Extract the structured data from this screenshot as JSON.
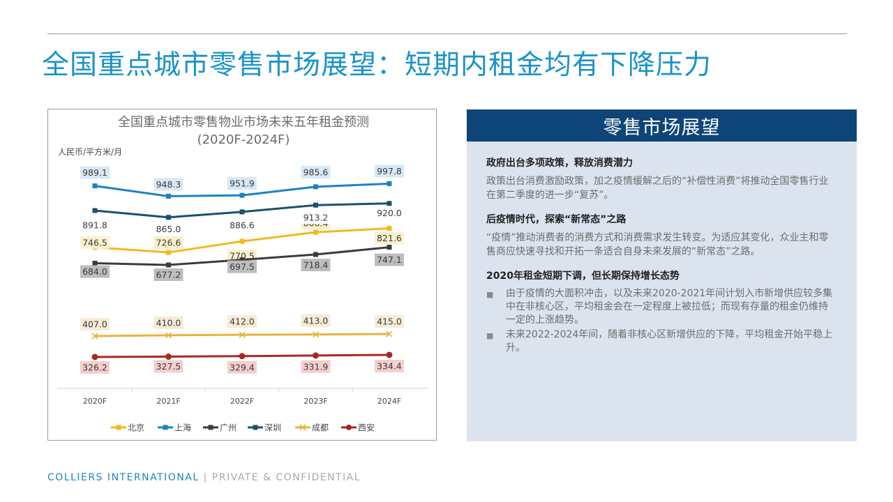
{
  "page": {
    "title": "全国重点城市零售市场展望：短期内租金均有下降压力"
  },
  "chart_data": {
    "type": "line",
    "title": "全国重点城市零售物业市场未来五年租金预测",
    "subtitle": "(2020F-2024F)",
    "ylabel": "人民币/平方米/月",
    "categories": [
      "2020F",
      "2021F",
      "2022F",
      "2023F",
      "2024F"
    ],
    "legend_position": "bottom",
    "grid": false,
    "series": [
      {
        "name": "北京",
        "values": [
          746.5,
          726.6,
          770.5,
          806.4,
          821.6
        ],
        "labels": [
          "746.5",
          "726.6",
          "770.5",
          "806.4",
          "821.6"
        ],
        "color": "#f3b81d",
        "marker": "square"
      },
      {
        "name": "上海",
        "values": [
          989.1,
          948.3,
          951.9,
          985.6,
          997.8
        ],
        "labels": [
          "989.1",
          "948.3",
          "951.9",
          "985.6",
          "997.8"
        ],
        "color": "#1c82bf",
        "marker": "square"
      },
      {
        "name": "广州",
        "values": [
          684.0,
          677.2,
          697.5,
          718.4,
          747.1
        ],
        "labels": [
          "684.0",
          "677.2",
          "697.5",
          "718.4",
          "747.1"
        ],
        "color": "#3b3b3b",
        "marker": "square"
      },
      {
        "name": "深圳",
        "values": [
          891.8,
          865.0,
          886.6,
          913.2,
          920.0
        ],
        "labels": [
          "891.8",
          "865.0",
          "886.6",
          "913.2",
          "920.0"
        ],
        "color": "#17526f",
        "marker": "square"
      },
      {
        "name": "成都",
        "values": [
          407.0,
          410.0,
          412.0,
          413.0,
          415.0
        ],
        "labels": [
          "407.0",
          "410.0",
          "412.0",
          "413.0",
          "415.0"
        ],
        "color": "#e8b23e",
        "marker": "x"
      },
      {
        "name": "西安",
        "values": [
          326.2,
          327.5,
          329.4,
          331.9,
          334.4
        ],
        "labels": [
          "326.2",
          "327.5",
          "329.4",
          "331.9",
          "334.4"
        ],
        "color": "#a52a22",
        "marker": "circle"
      }
    ]
  },
  "panel": {
    "title": "零售市场展望",
    "sections": [
      {
        "heading": "政府出台多项政策，释放消费潜力",
        "text": "政策出台消费激励政策，加之疫情缓解之后的“补偿性消费”将推动全国零售行业在第二季度的进一步“复苏”。"
      },
      {
        "heading": "后疫情时代，探索“新常态”之路",
        "text": "“疫情”推动消费者的消费方式和消费需求发生转变。为适应其变化，众业主和零售商应快速寻找和开拓一条适合自身未来发展的“新常态”之路。"
      },
      {
        "heading": "2020年租金短期下调，但长期保持增长态势",
        "bullets": [
          "由于疫情的大面积冲击，以及未来2020-2021年间计划入市新增供应较多集中在非核心区，平均租金会在一定程度上被拉低；而现有存量的租金仍维持一定的上涨趋势。",
          "未来2022-2024年间，随着非核心区新增供应的下降，平均租金开始平稳上升。"
        ]
      }
    ]
  },
  "footer": {
    "company": "COLLIERS INTERNATIONAL",
    "separator": "|",
    "confidential": "PRIVATE & CONFIDENTIAL"
  },
  "colors": {
    "title_blue": "#1a93c9",
    "panel_header": "#0e4578",
    "panel_bg": "#dbe3ef"
  }
}
